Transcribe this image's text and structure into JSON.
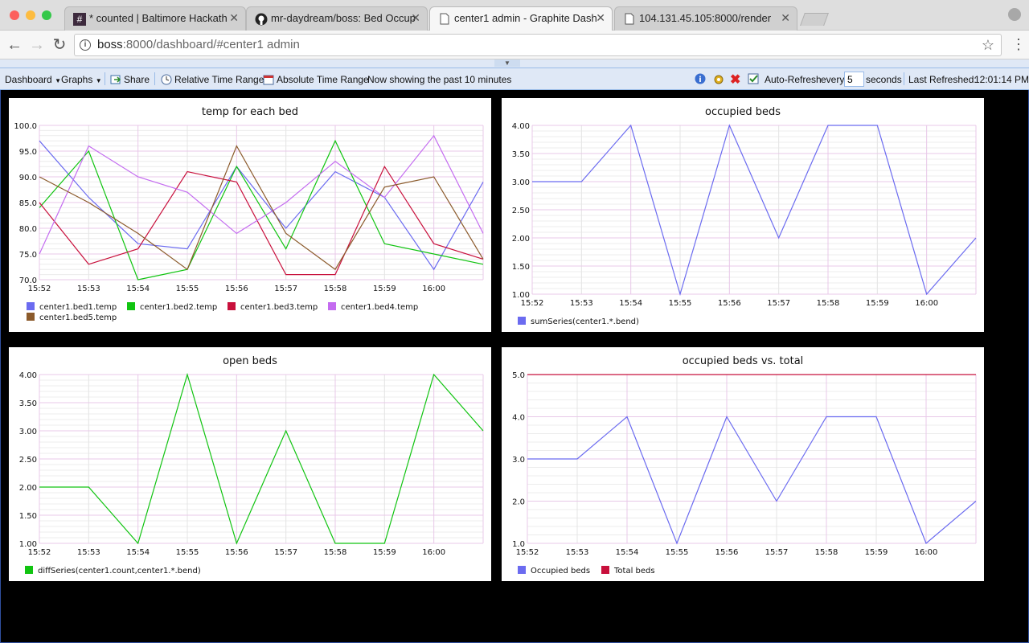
{
  "browser": {
    "tabs": [
      {
        "title": "* counted | Baltimore Hackath",
        "icon": "hash-icon"
      },
      {
        "title": "mr-daydream/boss: Bed Occup",
        "icon": "github-icon"
      },
      {
        "title": "center1 admin - Graphite Dash",
        "icon": "page-icon",
        "active": true
      },
      {
        "title": "104.131.45.105:8000/render",
        "icon": "page-icon"
      }
    ],
    "url_host": "boss",
    "url_rest": ":8000/dashboard/#center1 admin"
  },
  "toolbar": {
    "dashboard_label": "Dashboard",
    "graphs_label": "Graphs",
    "share_label": "Share",
    "relative_label": "Relative Time Range",
    "absolute_label": "Absolute Time Range",
    "showing_label": "Now showing the past 10 minutes",
    "auto_refresh_label": "Auto-Refresh",
    "every_label": "every",
    "refresh_seconds": "5",
    "seconds_label": "seconds",
    "last_refreshed_label": "Last Refreshed:",
    "last_refreshed_time": "12:01:14 PM"
  },
  "chart_data": [
    {
      "type": "line",
      "title": "temp for each bed",
      "x": [
        "15:52",
        "15:53",
        "15:54",
        "15:55",
        "15:56",
        "15:57",
        "15:58",
        "15:59",
        "16:00"
      ],
      "x_values": [
        0,
        1,
        2,
        3,
        4,
        5,
        6,
        7,
        8,
        9
      ],
      "ylim": [
        70,
        100
      ],
      "yticks": [
        "100.0",
        "95.0",
        "90.0",
        "85.0",
        "80.0",
        "75.0",
        "70.0"
      ],
      "series": [
        {
          "name": "center1.bed1.temp",
          "color": "#6b6bf0",
          "values": [
            97,
            86,
            77,
            76,
            92,
            80,
            91,
            86,
            72,
            89
          ]
        },
        {
          "name": "center1.bed2.temp",
          "color": "#11c411",
          "values": [
            84,
            95,
            70,
            72,
            92,
            76,
            97,
            77,
            75,
            73
          ]
        },
        {
          "name": "center1.bed3.temp",
          "color": "#c8103c",
          "values": [
            85,
            73,
            76,
            91,
            89,
            71,
            71,
            92,
            77,
            74
          ]
        },
        {
          "name": "center1.bed4.temp",
          "color": "#c46cf0",
          "values": [
            75,
            96,
            90,
            87,
            79,
            85,
            93,
            86,
            98,
            79
          ]
        },
        {
          "name": "center1.bed5.temp",
          "color": "#8b5a2b",
          "values": [
            90,
            85,
            79,
            72,
            96,
            79,
            72,
            88,
            90,
            74
          ]
        }
      ]
    },
    {
      "type": "line",
      "title": "occupied beds",
      "x": [
        "15:52",
        "15:53",
        "15:54",
        "15:55",
        "15:56",
        "15:57",
        "15:58",
        "15:59",
        "16:00"
      ],
      "x_values": [
        0,
        1,
        2,
        3,
        4,
        5,
        6,
        7,
        8,
        9
      ],
      "ylim": [
        1,
        4
      ],
      "yticks": [
        "4.00",
        "3.50",
        "3.00",
        "2.50",
        "2.00",
        "1.50",
        "1.00"
      ],
      "series": [
        {
          "name": "sumSeries(center1.*.bend)",
          "color": "#6b6bf0",
          "values": [
            3,
            3,
            4,
            1,
            4,
            2,
            4,
            4,
            1,
            2
          ]
        }
      ]
    },
    {
      "type": "line",
      "title": "open beds",
      "x": [
        "15:52",
        "15:53",
        "15:54",
        "15:55",
        "15:56",
        "15:57",
        "15:58",
        "15:59",
        "16:00"
      ],
      "x_values": [
        0,
        1,
        2,
        3,
        4,
        5,
        6,
        7,
        8,
        9
      ],
      "ylim": [
        1,
        4
      ],
      "yticks": [
        "4.00",
        "3.50",
        "3.00",
        "2.50",
        "2.00",
        "1.50",
        "1.00"
      ],
      "series": [
        {
          "name": "diffSeries(center1.count,center1.*.bend)",
          "color": "#11c411",
          "values": [
            2,
            2,
            1,
            4,
            1,
            3,
            1,
            1,
            4,
            3
          ]
        }
      ]
    },
    {
      "type": "line",
      "title": "occupied beds vs. total",
      "x": [
        "15:52",
        "15:53",
        "15:54",
        "15:55",
        "15:56",
        "15:57",
        "15:58",
        "15:59",
        "16:00"
      ],
      "x_values": [
        0,
        1,
        2,
        3,
        4,
        5,
        6,
        7,
        8,
        9
      ],
      "ylim": [
        1,
        5
      ],
      "yticks": [
        "5.0",
        "4.0",
        "3.0",
        "2.0",
        "1.0"
      ],
      "series": [
        {
          "name": "Occupied beds",
          "color": "#6b6bf0",
          "values": [
            3,
            3,
            4,
            1,
            4,
            2,
            4,
            4,
            1,
            2
          ]
        },
        {
          "name": "Total beds",
          "color": "#c8103c",
          "values": [
            5,
            5,
            5,
            5,
            5,
            5,
            5,
            5,
            5,
            5
          ]
        }
      ]
    }
  ]
}
